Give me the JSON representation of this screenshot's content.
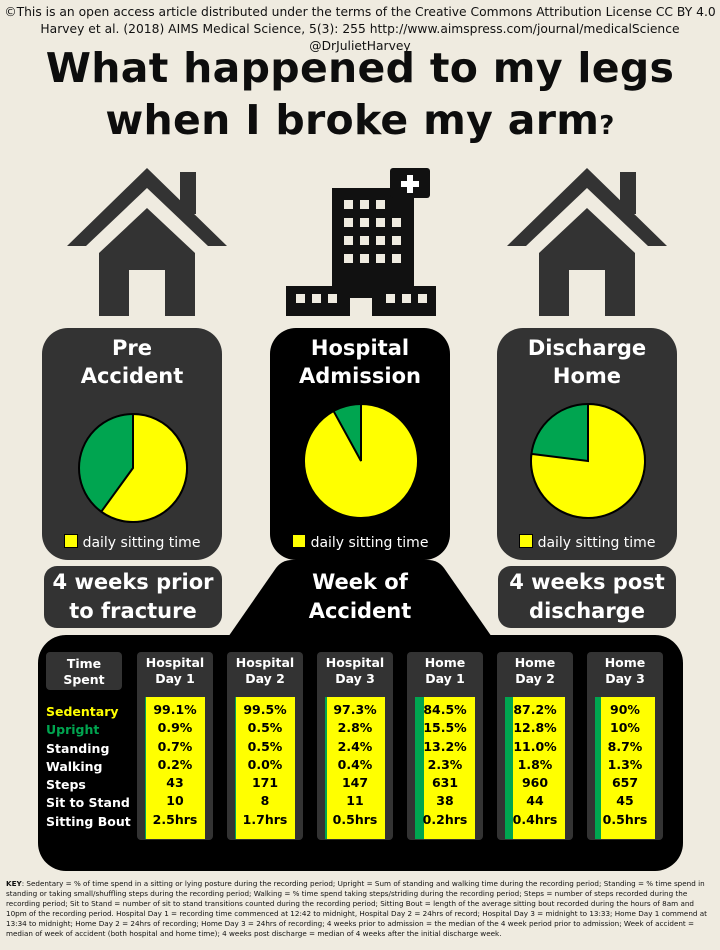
{
  "credit": {
    "line1": "©This is an open access article distributed under the terms of the Creative Commons Attribution License CC BY 4.0",
    "line2": "Harvey et al. (2018) AIMS Medical Science, 5(3): 255 http://www.aimspress.com/journal/medicalScience @DrJulietHarvey"
  },
  "title": {
    "line1": "What happened to my legs",
    "line2": "when I broke my arm",
    "mark": "?"
  },
  "colors": {
    "sitting": "#ffff00",
    "upright": "#00a550",
    "panel": "#333333",
    "dark": "#000000",
    "background": "#efebe0"
  },
  "icons": [
    "house-icon",
    "hospital-icon",
    "house-icon"
  ],
  "panels": [
    {
      "line1": "Pre",
      "line2": "Accident",
      "legend": "daily sitting time",
      "sitting_fraction": 0.6
    },
    {
      "line1": "Hospital",
      "line2": "Admission",
      "legend": "daily sitting time",
      "sitting_fraction": 0.92
    },
    {
      "line1": "Discharge",
      "line2": "Home",
      "legend": "daily sitting time",
      "sitting_fraction": 0.77
    }
  ],
  "periods": {
    "left": {
      "line1": "4 weeks prior",
      "line2": "to fracture"
    },
    "center": {
      "line1": "Week of",
      "line2": "Accident"
    },
    "right": {
      "line1": "4 weeks post",
      "line2": "discharge"
    }
  },
  "table": {
    "corner": {
      "line1": "Time",
      "line2": "Spent"
    },
    "row_labels": [
      "Sedentary",
      "Upright",
      "Standing",
      "Walking",
      "Steps",
      "Sit to Stand",
      "Sitting Bout"
    ],
    "columns": [
      {
        "line1": "Hospital",
        "line2": "Day 1",
        "upright_fraction": 0.009,
        "values": [
          "99.1%",
          "0.9%",
          "0.7%",
          "0.2%",
          "43",
          "10",
          "2.5hrs"
        ]
      },
      {
        "line1": "Hospital",
        "line2": "Day 2",
        "upright_fraction": 0.005,
        "values": [
          "99.5%",
          "0.5%",
          "0.5%",
          "0.0%",
          "171",
          "8",
          "1.7hrs"
        ]
      },
      {
        "line1": "Hospital",
        "line2": "Day 3",
        "upright_fraction": 0.028,
        "values": [
          "97.3%",
          "2.8%",
          "2.4%",
          "0.4%",
          "147",
          "11",
          "0.5hrs"
        ]
      },
      {
        "line1": "Home",
        "line2": "Day 1",
        "upright_fraction": 0.155,
        "values": [
          "84.5%",
          "15.5%",
          "13.2%",
          "2.3%",
          "631",
          "38",
          "0.2hrs"
        ]
      },
      {
        "line1": "Home",
        "line2": "Day 2",
        "upright_fraction": 0.128,
        "values": [
          "87.2%",
          "12.8%",
          "11.0%",
          "1.8%",
          "960",
          "44",
          "0.4hrs"
        ]
      },
      {
        "line1": "Home",
        "line2": "Day 3",
        "upright_fraction": 0.1,
        "values": [
          "90%",
          "10%",
          "8.7%",
          "1.3%",
          "657",
          "45",
          "0.5hrs"
        ]
      }
    ]
  },
  "key": {
    "label": "KEY",
    "text": ": Sedentary = % of time spend in a sitting or lying posture during the recording period; Upright = Sum of standing and walking time during the recording period; Standing = % time spend in standing or taking small/shuffling steps during the recording period; Walking = % time spend taking steps/striding during the recording period; Steps = number of steps recorded during the recording period; Sit to Stand = number of sit to stand transitions counted during the recording period; Sitting Bout = length of the average sitting bout recorded during the hours of 8am and 10pm of the recording period. Hospital Day 1 = recording time commenced at 12:42 to midnight, Hospital Day 2 = 24hrs of record; Hospital Day 3 = midnight to 13:33; Home Day 1 commend at 13:34 to midnight; Home Day 2 = 24hrs of recording; Home Day 3 = 24hrs of recording; 4 weeks prior to admission = the median of the 4 week period prior to admission; Week of accident = median of week of accident (both hospital and home time); 4 weeks post discharge = median of 4 weeks after the initial discharge week."
  }
}
